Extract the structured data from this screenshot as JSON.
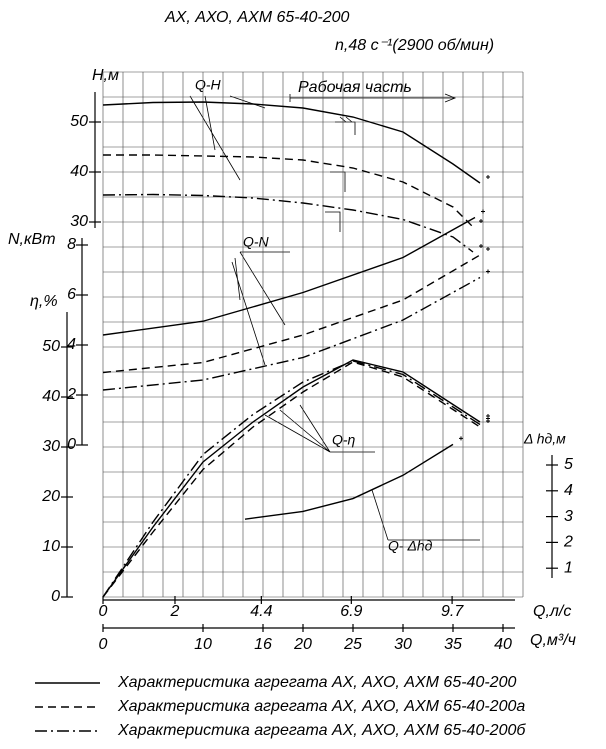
{
  "chart_data": {
    "type": "line",
    "title": "АХ, АХО, АХМ 65-40-200",
    "subtitle": "n,48 c⁻¹(2900 об/мин)",
    "annotations": {
      "qh": "Q-H",
      "work": "Рабочая часть",
      "qn": "Q-N",
      "qeta": "Q-η",
      "qdh": "Q- Δhд"
    },
    "x_axis": {
      "label": "Q,л/с",
      "xlim": [
        0,
        11.67
      ],
      "xticks": [
        0,
        2,
        4.4,
        6.9,
        9.7
      ]
    },
    "x2_axis": {
      "label": "Q,м³/ч",
      "xlim": [
        0,
        42
      ],
      "xticks": [
        0,
        10,
        16,
        20,
        25,
        30,
        35,
        40
      ]
    },
    "h_axis": {
      "label": "Н,м",
      "ylim": [
        30,
        55
      ],
      "yticks": [
        30,
        40,
        50
      ]
    },
    "n_axis": {
      "label": "N,кВт",
      "ylim": [
        0,
        8
      ],
      "yticks": [
        0,
        2,
        4,
        6,
        8
      ]
    },
    "eta_axis": {
      "label": "η,%",
      "ylim": [
        0,
        55
      ],
      "yticks": [
        0,
        10,
        20,
        30,
        40,
        50
      ]
    },
    "dh_axis": {
      "label": "Δ hд,м",
      "ylim": [
        0,
        5
      ],
      "yticks": [
        1,
        2,
        3,
        4,
        5
      ]
    },
    "grid": true,
    "series": [
      {
        "name": "Характеристика агрегата АХ, АХО, АХМ 65-40-200",
        "dash": "solid",
        "color": "#000000",
        "H": {
          "x": [
            0,
            5,
            10,
            15,
            20,
            25,
            30,
            35,
            37.7
          ],
          "values": [
            53.4,
            53.9,
            54,
            53.6,
            52.8,
            51,
            48,
            41.6,
            37.8
          ]
        },
        "N": {
          "x": [
            0,
            10,
            20,
            30,
            37.2
          ],
          "values": [
            4.4,
            4.95,
            6.1,
            7.5,
            9.1
          ]
        },
        "eta": {
          "x": [
            0,
            5,
            10,
            15,
            20,
            25,
            30,
            35,
            37.7
          ],
          "values": [
            0,
            14,
            27,
            35,
            42,
            47.4,
            45,
            38.5,
            35
          ]
        }
      },
      {
        "name": "Характеристика агрегата АХ, АХО, АХМ 65-40-200а",
        "dash": "dashed",
        "color": "#000000",
        "H": {
          "x": [
            0,
            5,
            10,
            15,
            20,
            25,
            30,
            35,
            37
          ],
          "values": [
            43.4,
            43.4,
            43.2,
            43,
            42.4,
            40.8,
            38,
            33,
            29
          ]
        },
        "N": {
          "x": [
            0,
            10,
            20,
            30,
            37.7
          ],
          "values": [
            2.9,
            3.3,
            4.4,
            5.8,
            7.6
          ]
        },
        "eta": {
          "x": [
            0,
            5,
            10,
            15,
            20,
            25,
            30,
            35,
            37.7
          ],
          "values": [
            0,
            13,
            25.5,
            34,
            41,
            47,
            44,
            37.5,
            34
          ]
        }
      },
      {
        "name": "Характеристика агрегата АХ, АХО, АХМ 65-40-200б",
        "dash": "dashdot",
        "color": "#000000",
        "H": {
          "x": [
            0,
            5,
            10,
            15,
            20,
            25,
            30,
            35,
            37
          ],
          "values": [
            35.4,
            35.5,
            35.3,
            34.8,
            33.8,
            32.4,
            30.5,
            27,
            24
          ]
        },
        "N": {
          "x": [
            0,
            10,
            20,
            30,
            37.7
          ],
          "values": [
            2.2,
            2.6,
            3.5,
            5.0,
            6.7
          ]
        },
        "eta": {
          "x": [
            0,
            5,
            10,
            15,
            20,
            25,
            30,
            35,
            37.7
          ],
          "values": [
            0,
            15,
            28.5,
            36.5,
            43,
            47.2,
            44.5,
            38,
            34.5
          ]
        }
      }
    ],
    "npsh": {
      "x": [
        14.2,
        20,
        25,
        30,
        35
      ],
      "values": [
        2.9,
        3.2,
        3.7,
        4.6,
        5.8
      ],
      "color": "#000000"
    }
  }
}
